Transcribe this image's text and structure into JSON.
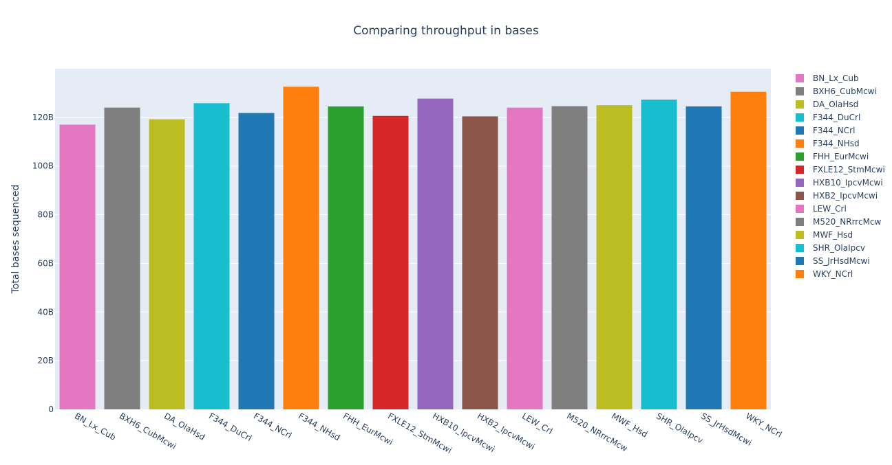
{
  "chart_data": {
    "type": "bar",
    "title": "Comparing throughput in bases",
    "xlabel": "",
    "ylabel": "Total bases sequenced",
    "ylim": [
      0,
      140000000000
    ],
    "yticks": [
      0,
      20000000000,
      40000000000,
      60000000000,
      80000000000,
      100000000000,
      120000000000
    ],
    "ytick_labels": [
      "0",
      "20B",
      "40B",
      "60B",
      "80B",
      "100B",
      "120B"
    ],
    "grid": true,
    "legend_position": "right",
    "categories": [
      "BN_Lx_Cub",
      "BXH6_CubMcwi",
      "DA_OlaHsd",
      "F344_DuCrl",
      "F344_NCrl",
      "F344_NHsd",
      "FHH_EurMcwi",
      "FXLE12_StmMcwi",
      "HXB10_IpcvMcwi",
      "HXB2_IpcvMcwi",
      "LEW_Crl",
      "M520_NRrrcMcw",
      "MWF_Hsd",
      "SHR_OlaIpcv",
      "SS_JrHsdMcwi",
      "WKY_NCrl"
    ],
    "tick_labels": [
      "BN_Lx_Cub",
      "BXH6_CubMcwi",
      "DA_OlaHsd",
      "F344_DuCrl",
      "F344_NCrl",
      "F344_NHsd",
      "FHH_EurMcwi",
      "FXLE12_StmMcwi",
      "HXB10_IpcvMcwi",
      "HXB2_IpcvMcwi",
      "LEW_Crl",
      "M520_NRrrcMcw",
      "MWF_Hsd",
      "SHR_OlaIpcv",
      "SS_JrHsdMcwi",
      "WKY_NCrl"
    ],
    "values": [
      117000000000,
      124000000000,
      119200000000,
      125800000000,
      121800000000,
      132600000000,
      124500000000,
      120600000000,
      127700000000,
      120400000000,
      124000000000,
      124600000000,
      125000000000,
      127300000000,
      124500000000,
      130500000000
    ],
    "colors": [
      "#e377c2",
      "#7f7f7f",
      "#bcbd22",
      "#17becf",
      "#1f77b4",
      "#ff7f0e",
      "#2ca02c",
      "#d62728",
      "#9467bd",
      "#8c564b",
      "#e377c2",
      "#7f7f7f",
      "#bcbd22",
      "#17becf",
      "#1f77b4",
      "#ff7f0e"
    ],
    "legend": [
      "BN_Lx_Cub",
      "BXH6_CubMcwi",
      "DA_OlaHsd",
      "F344_DuCrl",
      "F344_NCrl",
      "F344_NHsd",
      "FHH_EurMcwi",
      "FXLE12_StmMcwi",
      "HXB10_IpcvMcwi",
      "HXB2_IpcvMcwi",
      "LEW_Crl",
      "M520_NRrrcMcw",
      "MWF_Hsd",
      "SHR_OlaIpcv",
      "SS_JrHsdMcwi",
      "WKY_NCrl"
    ],
    "plot_background": "#e5ecf6"
  }
}
